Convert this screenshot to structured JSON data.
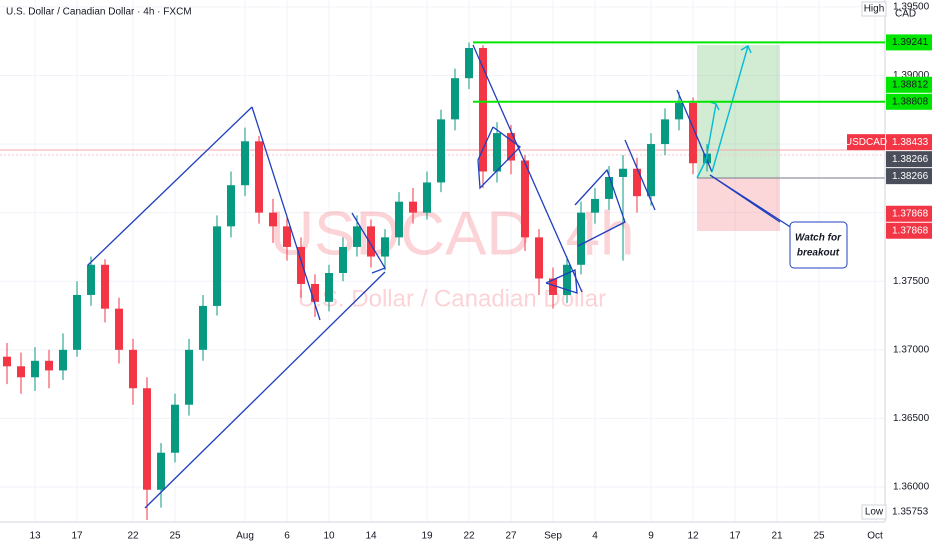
{
  "chart_data": {
    "type": "candlestick",
    "title": "U.S. Dollar / Canadian Dollar · 4h · FXCM",
    "watermark": "USDCAD, 4h",
    "watermark_subtitle": "U.S. Dollar / Canadian Dollar",
    "currency": "CAD",
    "high_label": "High",
    "low_label": "Low",
    "low_value": 1.35753,
    "annotation": [
      "Watch for",
      "breakout"
    ],
    "up_color": "#089981",
    "down_color": "#f23645",
    "categories": [
      null,
      null,
      "13",
      null,
      null,
      "17",
      null,
      null,
      null,
      "22",
      null,
      null,
      "25",
      null,
      null,
      null,
      null,
      "Aug",
      null,
      null,
      "6",
      null,
      null,
      "10",
      null,
      null,
      "14",
      null,
      null,
      null,
      "19",
      null,
      null,
      "22",
      null,
      null,
      "27",
      null,
      null,
      "Sep",
      null,
      null,
      "4",
      null,
      null,
      null,
      "9",
      null,
      null,
      "12",
      null,
      null,
      "17",
      null,
      null,
      "21",
      null,
      null,
      "25",
      null,
      null,
      null,
      "Oct"
    ],
    "open": [
      1.3695,
      1.3688,
      1.368,
      1.3692,
      1.3685,
      1.37,
      1.374,
      1.3762,
      1.373,
      1.37,
      1.3672,
      1.3598,
      1.3625,
      1.366,
      1.37,
      1.3732,
      1.379,
      1.382,
      1.3852,
      1.38,
      1.379,
      1.3775,
      1.3748,
      1.3735,
      1.3756,
      1.3775,
      1.379,
      1.3768,
      1.3782,
      1.3808,
      1.38,
      1.3822,
      1.3868,
      1.3898,
      1.392,
      1.383,
      1.3858,
      1.3838,
      1.3782,
      1.3752,
      1.374,
      1.3762,
      1.38,
      1.381,
      1.3826,
      1.3832,
      1.3812,
      1.385,
      1.3868,
      1.388,
      1.3836,
      null,
      null,
      null,
      null,
      null,
      null,
      null,
      null,
      null,
      null,
      null,
      null
    ],
    "high": [
      1.3705,
      1.3698,
      1.3702,
      1.37,
      1.3712,
      1.375,
      1.3768,
      1.3766,
      1.3738,
      1.3708,
      1.368,
      1.3632,
      1.3668,
      1.3708,
      1.374,
      1.3798,
      1.383,
      1.3862,
      1.3856,
      1.381,
      1.3798,
      1.3782,
      1.3755,
      1.3762,
      1.3782,
      1.3798,
      1.3795,
      1.3788,
      1.3815,
      1.3818,
      1.383,
      1.3875,
      1.3905,
      1.3924,
      1.3922,
      1.3866,
      1.3864,
      1.3842,
      1.3788,
      1.376,
      1.3768,
      1.3808,
      1.3818,
      1.3834,
      1.3842,
      1.384,
      1.3858,
      1.3876,
      1.3888,
      1.3884,
      1.385,
      null,
      null,
      null,
      null,
      null,
      null,
      null,
      null,
      null,
      null,
      null,
      null
    ],
    "low": [
      1.3675,
      1.3668,
      1.367,
      1.3672,
      1.3678,
      1.3695,
      1.3732,
      1.372,
      1.369,
      1.366,
      1.3576,
      1.3585,
      1.3618,
      1.3652,
      1.3692,
      1.3725,
      1.3782,
      1.3812,
      1.3792,
      1.3778,
      1.3765,
      1.3738,
      1.3724,
      1.3728,
      1.375,
      1.3768,
      1.376,
      1.3758,
      1.3776,
      1.3792,
      1.3795,
      1.3815,
      1.386,
      1.389,
      1.3818,
      1.3822,
      1.3828,
      1.3772,
      1.374,
      1.373,
      1.3734,
      1.3755,
      1.3792,
      1.3802,
      1.3765,
      1.38,
      1.3805,
      1.3842,
      1.386,
      1.3828,
      1.383,
      null,
      null,
      null,
      null,
      null,
      null,
      null,
      null,
      null,
      null,
      null,
      null
    ],
    "close": [
      1.3688,
      1.368,
      1.3692,
      1.3685,
      1.37,
      1.374,
      1.3762,
      1.373,
      1.37,
      1.3672,
      1.3598,
      1.3625,
      1.366,
      1.37,
      1.3732,
      1.379,
      1.382,
      1.3852,
      1.38,
      1.379,
      1.3775,
      1.3748,
      1.3735,
      1.3756,
      1.3775,
      1.379,
      1.3768,
      1.3782,
      1.3808,
      1.38,
      1.3822,
      1.3868,
      1.3898,
      1.392,
      1.383,
      1.3858,
      1.3838,
      1.3782,
      1.3752,
      1.374,
      1.3762,
      1.38,
      1.381,
      1.3826,
      1.3832,
      1.3812,
      1.385,
      1.3868,
      1.388,
      1.3836,
      1.3843,
      null,
      null,
      null,
      null,
      null,
      null,
      null,
      null,
      null,
      null,
      null,
      null
    ],
    "ylim": [
      1.35745,
      1.3955
    ],
    "yticks": [
      {
        "value": 1.36,
        "label": "1.36000"
      },
      {
        "value": 1.365,
        "label": "1.36500"
      },
      {
        "value": 1.37,
        "label": "1.37000"
      },
      {
        "value": 1.375,
        "label": "1.37500"
      },
      {
        "value": 1.38,
        "label": "1.38000"
      },
      {
        "value": 1.385,
        "label": "1.38500"
      },
      {
        "value": 1.39,
        "label": "1.39000"
      },
      {
        "value": 1.395,
        "label": "1.39500"
      }
    ],
    "price_labels": [
      {
        "value": 1.39241,
        "color": "#00e600",
        "line": true
      },
      {
        "value": 1.38812,
        "color": "#00e600"
      },
      {
        "value": 1.38808,
        "color": "#00e600",
        "line": true
      },
      {
        "name": "USDCAD",
        "value": 1.38433,
        "color": "#f23645"
      },
      {
        "value": 1.38266,
        "color": "#4a4e5a"
      },
      {
        "value": 1.38266,
        "color": "#4a4e5a"
      },
      {
        "value": 1.37868,
        "color": "#f23645"
      },
      {
        "value": 1.37868,
        "color": "#f23645"
      }
    ]
  }
}
